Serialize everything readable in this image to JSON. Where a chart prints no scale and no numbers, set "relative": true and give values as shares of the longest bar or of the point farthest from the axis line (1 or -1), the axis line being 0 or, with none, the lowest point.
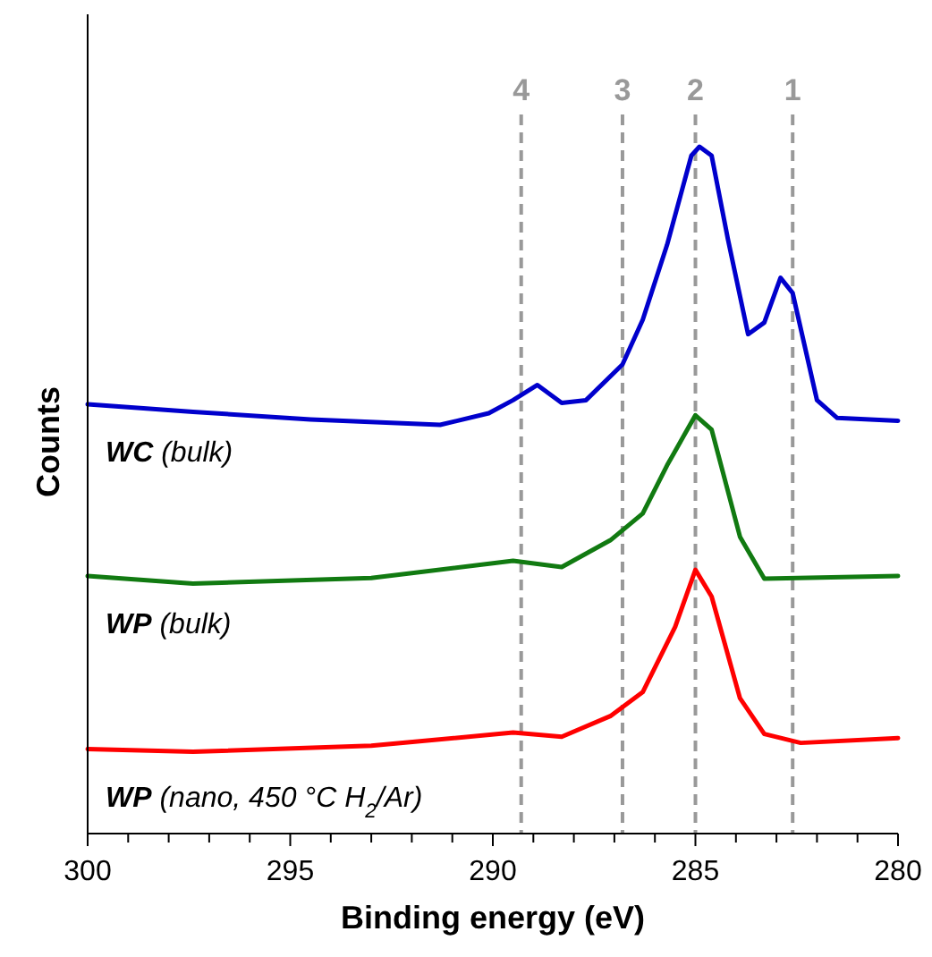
{
  "chart_data": {
    "type": "line",
    "relative": true,
    "xlabel": "Binding energy (eV)",
    "ylabel": "Counts",
    "xlim": [
      300,
      280
    ],
    "xticks": [
      300,
      {
        "value": 299,
        "label": null
      },
      {
        "value": 298,
        "label": null
      },
      {
        "value": 297,
        "label": null
      },
      {
        "value": 296,
        "label": null
      },
      295,
      {
        "value": 294,
        "label": null
      },
      {
        "value": 293,
        "label": null
      },
      {
        "value": 292,
        "label": null
      },
      {
        "value": 291,
        "label": null
      },
      290,
      {
        "value": 289,
        "label": null
      },
      {
        "value": 288,
        "label": null
      },
      {
        "value": 287,
        "label": null
      },
      {
        "value": 286,
        "label": null
      },
      285,
      {
        "value": 284,
        "label": null
      },
      {
        "value": 283,
        "label": null
      },
      {
        "value": 282,
        "label": null
      },
      {
        "value": 281,
        "label": null
      },
      280
    ],
    "tick_labels": "x",
    "grid": false,
    "marker": "none",
    "line_style": "solid",
    "series": [
      {
        "name": "WC (bulk)",
        "color": "#0000cc",
        "x": [
          300,
          297.4,
          294.5,
          291.3,
          290.1,
          289.5,
          288.9,
          288.3,
          287.7,
          286.8,
          286.3,
          285.7,
          285.1,
          284.9,
          284.6,
          284.2,
          283.7,
          283.3,
          282.9,
          282.6,
          282,
          281.5,
          280
        ],
        "values": [
          0.625,
          0.614,
          0.603,
          0.595,
          0.612,
          0.631,
          0.653,
          0.627,
          0.631,
          0.683,
          0.748,
          0.857,
          0.987,
          1,
          0.987,
          0.866,
          0.727,
          0.744,
          0.809,
          0.787,
          0.631,
          0.605,
          0.601
        ]
      },
      {
        "name": "WP (bulk)",
        "color": "#117a11",
        "x": [
          300,
          297.4,
          293,
          289.5,
          288.3,
          287.1,
          286.3,
          285.7,
          285,
          284.6,
          283.9,
          283.3,
          280
        ],
        "values": [
          0.375,
          0.364,
          0.372,
          0.397,
          0.388,
          0.427,
          0.466,
          0.536,
          0.609,
          0.588,
          0.432,
          0.371,
          0.375
        ]
      },
      {
        "name": "WP (nano, 450 °C H$_{2}$/Ar)",
        "color": "#ff0000",
        "x": [
          300,
          297.4,
          293,
          289.5,
          288.3,
          287.1,
          286.3,
          285.5,
          285,
          284.6,
          283.9,
          283.3,
          282.4,
          280
        ],
        "values": [
          0.123,
          0.119,
          0.128,
          0.147,
          0.141,
          0.171,
          0.206,
          0.301,
          0.384,
          0.345,
          0.197,
          0.145,
          0.132,
          0.139
        ]
      }
    ],
    "ref_lines": [
      {
        "axis": "x",
        "value": 289.3,
        "color": "#999999",
        "line_style": "dashed"
      },
      {
        "axis": "x",
        "value": 286.8,
        "color": "#999999",
        "line_style": "dashed"
      },
      {
        "axis": "x",
        "value": 285,
        "color": "#999999",
        "line_style": "dashed"
      },
      {
        "axis": "x",
        "value": 282.6,
        "color": "#999999",
        "line_style": "dashed"
      }
    ],
    "annotations": [
      "4",
      "3",
      "2",
      "1"
    ]
  }
}
